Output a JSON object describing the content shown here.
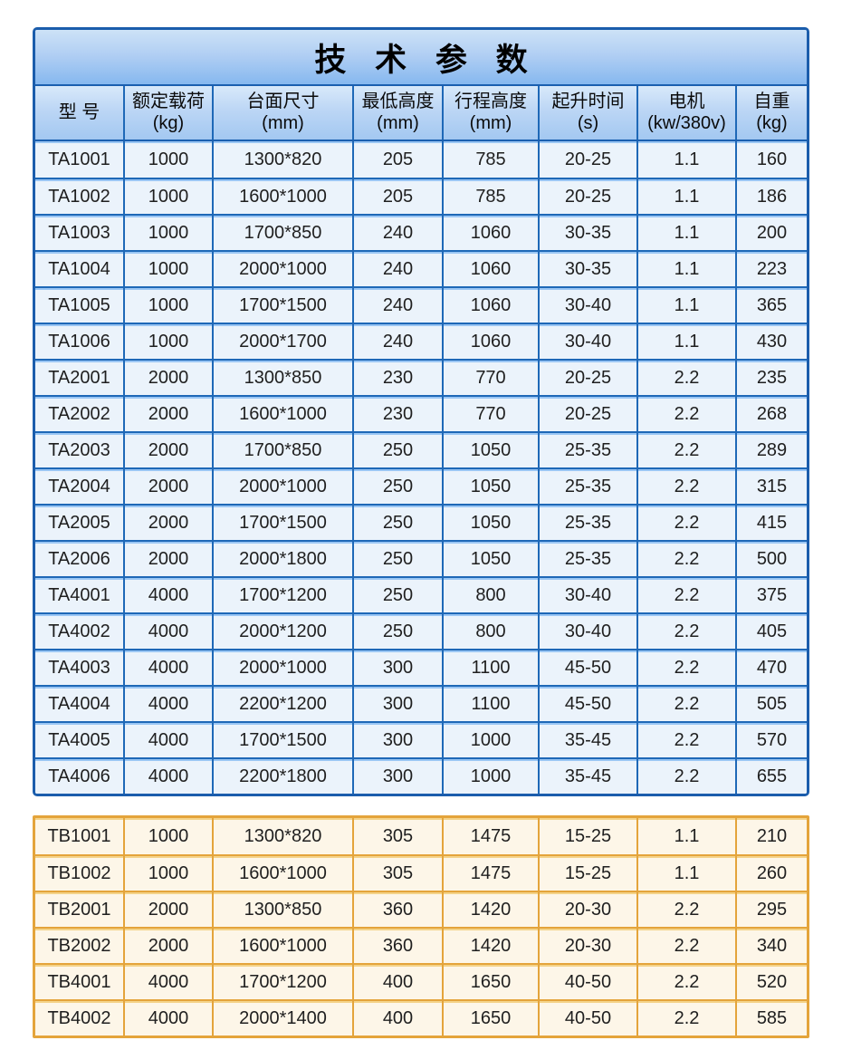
{
  "page": {
    "title": "技 术 参 数"
  },
  "columns": [
    {
      "key": "model",
      "name": "型 号",
      "unit": ""
    },
    {
      "key": "rated-load",
      "name": "额定载荷",
      "unit": "(kg)"
    },
    {
      "key": "platform-size",
      "name": "台面尺寸",
      "unit": "(mm)"
    },
    {
      "key": "min-height",
      "name": "最低高度",
      "unit": "(mm)"
    },
    {
      "key": "travel-height",
      "name": "行程高度",
      "unit": "(mm)"
    },
    {
      "key": "lift-time",
      "name": "起升时间",
      "unit": "(s)"
    },
    {
      "key": "motor",
      "name": "电机",
      "unit": "(kw/380v)"
    },
    {
      "key": "self-weight",
      "name": "自重",
      "unit": "(kg)"
    }
  ],
  "ta_rows": [
    [
      "TA1001",
      "1000",
      "1300*820",
      "205",
      "785",
      "20-25",
      "1.1",
      "160"
    ],
    [
      "TA1002",
      "1000",
      "1600*1000",
      "205",
      "785",
      "20-25",
      "1.1",
      "186"
    ],
    [
      "TA1003",
      "1000",
      "1700*850",
      "240",
      "1060",
      "30-35",
      "1.1",
      "200"
    ],
    [
      "TA1004",
      "1000",
      "2000*1000",
      "240",
      "1060",
      "30-35",
      "1.1",
      "223"
    ],
    [
      "TA1005",
      "1000",
      "1700*1500",
      "240",
      "1060",
      "30-40",
      "1.1",
      "365"
    ],
    [
      "TA1006",
      "1000",
      "2000*1700",
      "240",
      "1060",
      "30-40",
      "1.1",
      "430"
    ],
    [
      "TA2001",
      "2000",
      "1300*850",
      "230",
      "770",
      "20-25",
      "2.2",
      "235"
    ],
    [
      "TA2002",
      "2000",
      "1600*1000",
      "230",
      "770",
      "20-25",
      "2.2",
      "268"
    ],
    [
      "TA2003",
      "2000",
      "1700*850",
      "250",
      "1050",
      "25-35",
      "2.2",
      "289"
    ],
    [
      "TA2004",
      "2000",
      "2000*1000",
      "250",
      "1050",
      "25-35",
      "2.2",
      "315"
    ],
    [
      "TA2005",
      "2000",
      "1700*1500",
      "250",
      "1050",
      "25-35",
      "2.2",
      "415"
    ],
    [
      "TA2006",
      "2000",
      "2000*1800",
      "250",
      "1050",
      "25-35",
      "2.2",
      "500"
    ],
    [
      "TA4001",
      "4000",
      "1700*1200",
      "250",
      "800",
      "30-40",
      "2.2",
      "375"
    ],
    [
      "TA4002",
      "4000",
      "2000*1200",
      "250",
      "800",
      "30-40",
      "2.2",
      "405"
    ],
    [
      "TA4003",
      "4000",
      "2000*1000",
      "300",
      "1100",
      "45-50",
      "2.2",
      "470"
    ],
    [
      "TA4004",
      "4000",
      "2200*1200",
      "300",
      "1100",
      "45-50",
      "2.2",
      "505"
    ],
    [
      "TA4005",
      "4000",
      "1700*1500",
      "300",
      "1000",
      "35-45",
      "2.2",
      "570"
    ],
    [
      "TA4006",
      "4000",
      "2200*1800",
      "300",
      "1000",
      "35-45",
      "2.2",
      "655"
    ]
  ],
  "tb_rows": [
    [
      "TB1001",
      "1000",
      "1300*820",
      "305",
      "1475",
      "15-25",
      "1.1",
      "210"
    ],
    [
      "TB1002",
      "1000",
      "1600*1000",
      "305",
      "1475",
      "15-25",
      "1.1",
      "260"
    ],
    [
      "TB2001",
      "2000",
      "1300*850",
      "360",
      "1420",
      "20-30",
      "2.2",
      "295"
    ],
    [
      "TB2002",
      "2000",
      "1600*1000",
      "360",
      "1420",
      "20-30",
      "2.2",
      "340"
    ],
    [
      "TB4001",
      "4000",
      "1700*1200",
      "400",
      "1650",
      "40-50",
      "2.2",
      "520"
    ],
    [
      "TB4002",
      "4000",
      "2000*1400",
      "400",
      "1650",
      "40-50",
      "2.2",
      "585"
    ]
  ],
  "colors": {
    "blue_outer_border": "#1b5dac",
    "blue_inner_border": "#1e68b7",
    "blue_cell_bg": "#ebf3fb",
    "blue_row_highlight": "#9ac6f4",
    "title_gradient_top": "#cde2f7",
    "title_gradient_bottom": "#86b8ef",
    "header_gradient_top": "#d8e9fa",
    "header_gradient_bottom": "#a3c8f1",
    "gold_border": "#e4a43b",
    "gold_cell_bg": "#fdf6e8",
    "gold_row_highlight": "#f4d389",
    "text": "#1f1f1f"
  }
}
